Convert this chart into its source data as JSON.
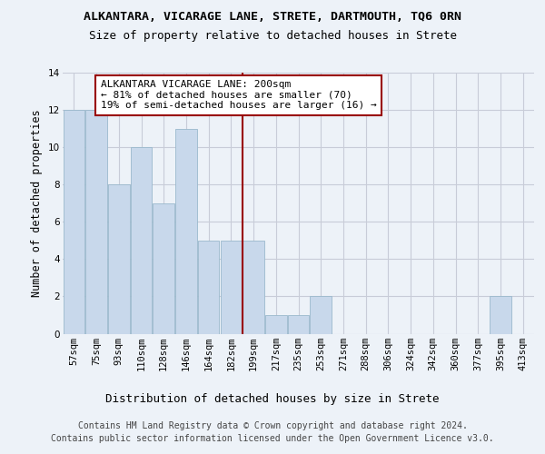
{
  "title": "ALKANTARA, VICARAGE LANE, STRETE, DARTMOUTH, TQ6 0RN",
  "subtitle": "Size of property relative to detached houses in Strete",
  "xlabel": "Distribution of detached houses by size in Strete",
  "ylabel": "Number of detached properties",
  "bar_color": "#c8d8eb",
  "bar_edgecolor": "#9ab8cc",
  "grid_color": "#c8ccd8",
  "background_color": "#edf2f8",
  "bin_labels": [
    "57sqm",
    "75sqm",
    "93sqm",
    "110sqm",
    "128sqm",
    "146sqm",
    "164sqm",
    "182sqm",
    "199sqm",
    "217sqm",
    "235sqm",
    "253sqm",
    "271sqm",
    "288sqm",
    "306sqm",
    "324sqm",
    "342sqm",
    "360sqm",
    "377sqm",
    "395sqm",
    "413sqm"
  ],
  "bar_heights": [
    12,
    12,
    8,
    10,
    7,
    11,
    5,
    5,
    5,
    1,
    1,
    2,
    0,
    0,
    0,
    0,
    0,
    0,
    0,
    2,
    0
  ],
  "vline_index": 8,
  "vline_color": "#990000",
  "annotation_title": "ALKANTARA VICARAGE LANE: 200sqm",
  "annotation_line1": "← 81% of detached houses are smaller (70)",
  "annotation_line2": "19% of semi-detached houses are larger (16) →",
  "annotation_box_facecolor": "#ffffff",
  "annotation_box_edgecolor": "#990000",
  "ylim": [
    0,
    14
  ],
  "yticks": [
    0,
    2,
    4,
    6,
    8,
    10,
    12,
    14
  ],
  "tick_fontsize": 7.5,
  "annotation_fontsize": 8,
  "footer_line1": "Contains HM Land Registry data © Crown copyright and database right 2024.",
  "footer_line2": "Contains public sector information licensed under the Open Government Licence v3.0.",
  "footer_fontsize": 7
}
